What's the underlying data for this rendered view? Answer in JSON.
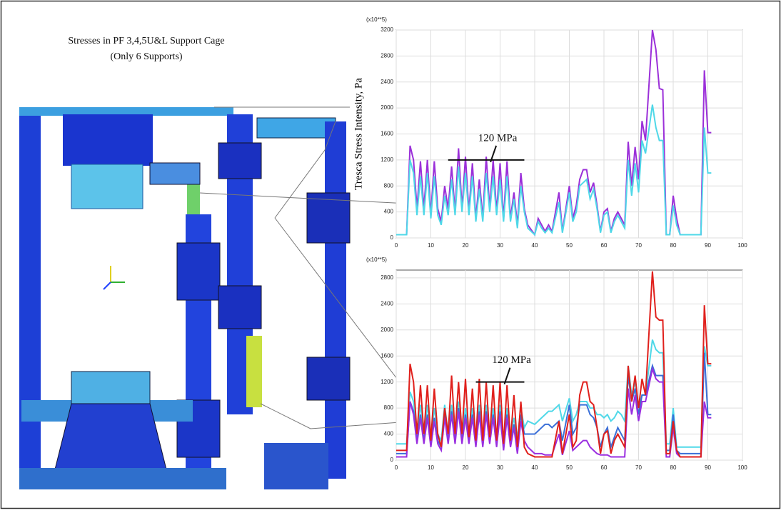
{
  "figure": {
    "title_lines": [
      "Stresses in PF 3,4,5U&L Support Cage",
      "(Only 6 Supports)"
    ]
  },
  "chart_data": [
    {
      "type": "line",
      "scale_label": "(x10**5)",
      "y_label": "Tresca Stress Intensity, Pa",
      "annotation": "120 MPa",
      "hline": 1200,
      "xlim": [
        0,
        100
      ],
      "xticks": [
        0,
        10,
        20,
        30,
        40,
        50,
        60,
        70,
        80,
        90,
        100
      ],
      "ylim": [
        0,
        3200
      ],
      "yticks": [
        0,
        400,
        800,
        1200,
        1600,
        2000,
        2400,
        2800,
        3200
      ],
      "grid": true,
      "x": [
        0,
        3,
        4,
        5,
        6,
        7,
        8,
        9,
        10,
        11,
        12,
        13,
        14,
        15,
        16,
        17,
        18,
        19,
        20,
        21,
        22,
        23,
        24,
        25,
        26,
        27,
        28,
        29,
        30,
        31,
        32,
        33,
        34,
        35,
        36,
        37,
        38,
        40,
        41,
        42,
        43,
        44,
        45,
        47,
        48,
        50,
        51,
        52,
        53,
        54,
        55,
        56,
        57,
        58,
        59,
        60,
        61,
        62,
        63,
        64,
        65,
        66,
        67,
        68,
        69,
        70,
        71,
        72,
        74,
        75,
        76,
        77,
        78,
        79,
        80,
        81,
        82,
        88,
        89,
        90,
        91
      ],
      "series": [
        {
          "color": "#9b30d9",
          "values": [
            50,
            50,
            1420,
            1200,
            450,
            1180,
            450,
            1200,
            350,
            1180,
            450,
            250,
            800,
            450,
            1100,
            400,
            1380,
            450,
            1250,
            400,
            1150,
            300,
            900,
            300,
            1250,
            450,
            1200,
            400,
            1150,
            300,
            1180,
            300,
            700,
            200,
            1000,
            450,
            200,
            50,
            300,
            200,
            100,
            200,
            100,
            700,
            100,
            800,
            300,
            500,
            900,
            1050,
            1050,
            700,
            850,
            500,
            100,
            400,
            450,
            100,
            300,
            400,
            300,
            200,
            1480,
            800,
            1400,
            900,
            1800,
            1500,
            3200,
            2900,
            2300,
            2280,
            50,
            50,
            650,
            300,
            50,
            50,
            2580,
            1620,
            1620
          ]
        },
        {
          "color": "#4fd8e8",
          "values": [
            50,
            50,
            1200,
            1000,
            350,
            950,
            350,
            1000,
            300,
            950,
            350,
            200,
            650,
            350,
            900,
            350,
            1100,
            400,
            1000,
            350,
            950,
            250,
            750,
            250,
            1000,
            400,
            950,
            350,
            900,
            250,
            950,
            250,
            600,
            150,
            800,
            400,
            150,
            50,
            250,
            150,
            80,
            150,
            80,
            550,
            80,
            700,
            250,
            400,
            800,
            850,
            900,
            600,
            750,
            450,
            80,
            350,
            400,
            80,
            250,
            350,
            250,
            150,
            1200,
            650,
            1150,
            700,
            1500,
            1300,
            2050,
            1700,
            1500,
            1500,
            50,
            50,
            500,
            200,
            50,
            50,
            1700,
            1000,
            1000
          ]
        }
      ]
    },
    {
      "type": "line",
      "scale_label": "(x10**5)",
      "annotation": "120 MPa",
      "hline": 1200,
      "xlim": [
        0,
        100
      ],
      "xticks": [
        0,
        10,
        20,
        30,
        40,
        50,
        60,
        70,
        80,
        90,
        100
      ],
      "ylim": [
        0,
        2920
      ],
      "yticks": [
        0,
        400,
        800,
        1200,
        1600,
        2000,
        2400,
        2800
      ],
      "grid": true,
      "x": [
        0,
        3,
        4,
        5,
        6,
        7,
        8,
        9,
        10,
        11,
        12,
        13,
        14,
        15,
        16,
        17,
        18,
        19,
        20,
        21,
        22,
        23,
        24,
        25,
        26,
        27,
        28,
        29,
        30,
        31,
        32,
        33,
        34,
        35,
        36,
        37,
        38,
        40,
        41,
        42,
        43,
        44,
        45,
        47,
        48,
        50,
        51,
        52,
        53,
        54,
        55,
        56,
        57,
        58,
        59,
        60,
        61,
        62,
        63,
        64,
        65,
        66,
        67,
        68,
        69,
        70,
        71,
        72,
        74,
        75,
        76,
        77,
        78,
        79,
        80,
        81,
        82,
        88,
        89,
        90,
        91
      ],
      "series": [
        {
          "color": "#4fd8e8",
          "values": [
            250,
            250,
            1050,
            900,
            400,
            850,
            400,
            850,
            350,
            800,
            400,
            300,
            850,
            400,
            850,
            400,
            900,
            400,
            800,
            400,
            800,
            350,
            850,
            350,
            850,
            400,
            800,
            350,
            850,
            300,
            800,
            350,
            650,
            350,
            800,
            500,
            600,
            550,
            600,
            650,
            700,
            750,
            750,
            850,
            600,
            950,
            600,
            700,
            900,
            900,
            900,
            800,
            800,
            700,
            700,
            650,
            700,
            600,
            650,
            750,
            700,
            600,
            1450,
            1000,
            1200,
            800,
            1000,
            1000,
            1850,
            1700,
            1650,
            1650,
            250,
            250,
            800,
            200,
            200,
            200,
            1750,
            1450,
            1450
          ]
        },
        {
          "color": "#3a6fd8",
          "values": [
            100,
            100,
            900,
            750,
            300,
            700,
            300,
            700,
            250,
            650,
            300,
            200,
            700,
            300,
            750,
            300,
            800,
            300,
            700,
            300,
            700,
            250,
            750,
            250,
            750,
            300,
            700,
            250,
            750,
            200,
            700,
            250,
            550,
            150,
            700,
            400,
            400,
            400,
            450,
            500,
            550,
            550,
            500,
            600,
            300,
            850,
            400,
            500,
            850,
            850,
            850,
            700,
            650,
            500,
            200,
            400,
            500,
            200,
            350,
            500,
            400,
            300,
            1300,
            900,
            1100,
            700,
            1000,
            1000,
            1450,
            1300,
            1300,
            1300,
            150,
            150,
            700,
            150,
            100,
            100,
            1650,
            700,
            700
          ]
        },
        {
          "color": "#9a2ee0",
          "values": [
            50,
            50,
            900,
            700,
            250,
            650,
            250,
            650,
            200,
            600,
            250,
            150,
            650,
            250,
            700,
            250,
            750,
            250,
            650,
            250,
            650,
            200,
            700,
            200,
            700,
            250,
            650,
            200,
            700,
            150,
            650,
            200,
            500,
            100,
            600,
            300,
            200,
            100,
            100,
            100,
            80,
            80,
            80,
            400,
            80,
            450,
            150,
            200,
            250,
            300,
            300,
            200,
            150,
            100,
            80,
            80,
            80,
            50,
            50,
            50,
            50,
            50,
            1100,
            700,
            1000,
            600,
            900,
            900,
            1400,
            1250,
            1200,
            1200,
            50,
            50,
            500,
            100,
            50,
            50,
            900,
            650,
            650
          ]
        },
        {
          "color": "#e0201c",
          "values": [
            150,
            150,
            1480,
            1200,
            400,
            1150,
            400,
            1150,
            300,
            1100,
            400,
            200,
            800,
            400,
            1300,
            400,
            1200,
            400,
            1250,
            350,
            1100,
            300,
            1250,
            300,
            1200,
            350,
            1150,
            300,
            1200,
            250,
            1150,
            300,
            1000,
            200,
            900,
            200,
            100,
            50,
            50,
            50,
            50,
            50,
            50,
            600,
            100,
            700,
            200,
            300,
            1000,
            1200,
            1200,
            900,
            850,
            500,
            100,
            400,
            450,
            100,
            300,
            400,
            300,
            200,
            1450,
            900,
            1300,
            800,
            1250,
            1000,
            2900,
            2200,
            2150,
            2150,
            100,
            100,
            600,
            150,
            50,
            50,
            2380,
            1480,
            1480
          ]
        }
      ]
    }
  ]
}
